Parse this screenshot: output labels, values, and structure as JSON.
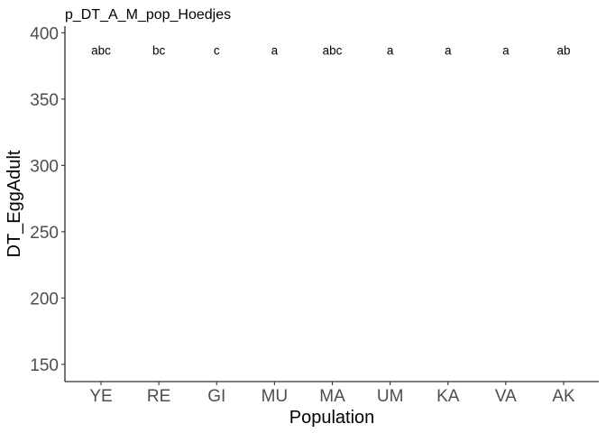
{
  "chart_data": {
    "type": "scatter",
    "title": "p_DT_A_M_pop_Hoedjes",
    "xlabel": "Population",
    "ylabel": "DT_EggAdult",
    "categories": [
      "YE",
      "RE",
      "GI",
      "MU",
      "MA",
      "UM",
      "KA",
      "VA",
      "AK"
    ],
    "group_labels": [
      "abc",
      "bc",
      "c",
      "a",
      "abc",
      "a",
      "a",
      "a",
      "ab"
    ],
    "group_label_y": 387,
    "yticks": [
      150,
      200,
      250,
      300,
      350,
      400
    ],
    "ylim": [
      137,
      405
    ],
    "grid": false,
    "legend": "none"
  }
}
